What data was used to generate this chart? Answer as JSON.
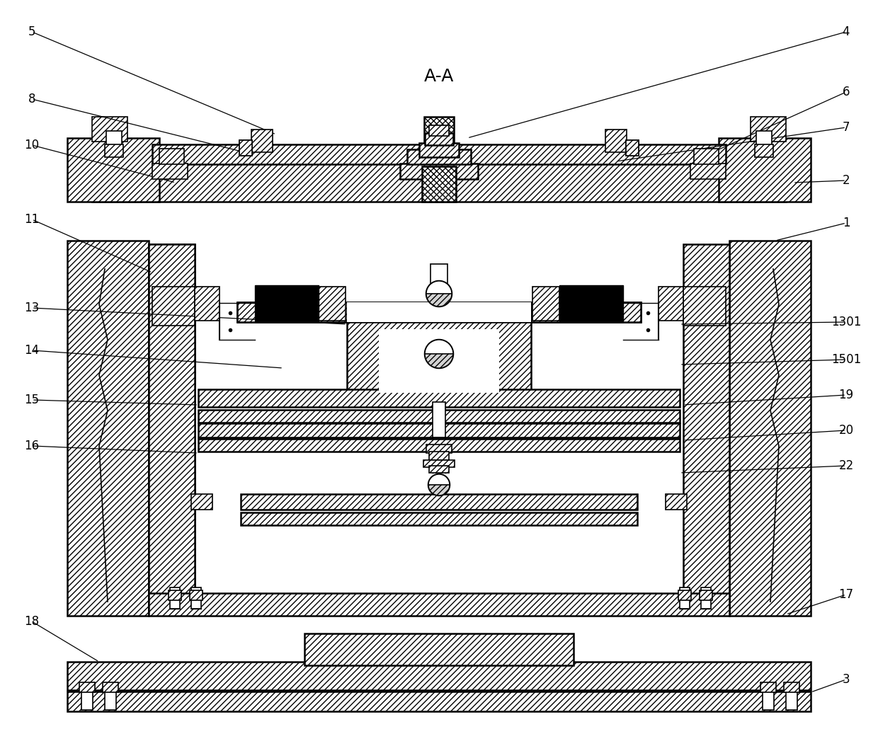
{
  "title": "A-A",
  "bg": "#ffffff",
  "lc": "#000000",
  "labels_data": [
    [
      "1",
      1195,
      315,
      1095,
      340,
      1095,
      340
    ],
    [
      "2",
      1195,
      255,
      1120,
      258,
      1120,
      258
    ],
    [
      "3",
      1195,
      960,
      1145,
      978,
      1145,
      978
    ],
    [
      "4",
      1195,
      45,
      660,
      195,
      660,
      195
    ],
    [
      "5",
      45,
      45,
      390,
      190,
      390,
      190
    ],
    [
      "6",
      1195,
      130,
      1000,
      218,
      1000,
      218
    ],
    [
      "7",
      1195,
      180,
      870,
      228,
      870,
      228
    ],
    [
      "8",
      45,
      140,
      345,
      215,
      345,
      215
    ],
    [
      "10",
      45,
      205,
      248,
      258,
      248,
      258
    ],
    [
      "11",
      45,
      310,
      215,
      385,
      215,
      385
    ],
    [
      "13",
      45,
      435,
      490,
      458,
      490,
      458
    ],
    [
      "14",
      45,
      495,
      400,
      520,
      400,
      520
    ],
    [
      "15",
      45,
      565,
      280,
      572,
      280,
      572
    ],
    [
      "16",
      45,
      630,
      280,
      640,
      280,
      640
    ],
    [
      "17",
      1195,
      840,
      1110,
      868,
      1110,
      868
    ],
    [
      "18",
      45,
      878,
      140,
      935,
      140,
      935
    ],
    [
      "19",
      1195,
      558,
      965,
      572,
      965,
      572
    ],
    [
      "20",
      1195,
      608,
      965,
      622,
      965,
      622
    ],
    [
      "22",
      1195,
      658,
      960,
      668,
      960,
      668
    ],
    [
      "1301",
      1195,
      455,
      960,
      458,
      960,
      458
    ],
    [
      "1501",
      1195,
      508,
      960,
      515,
      960,
      515
    ]
  ]
}
